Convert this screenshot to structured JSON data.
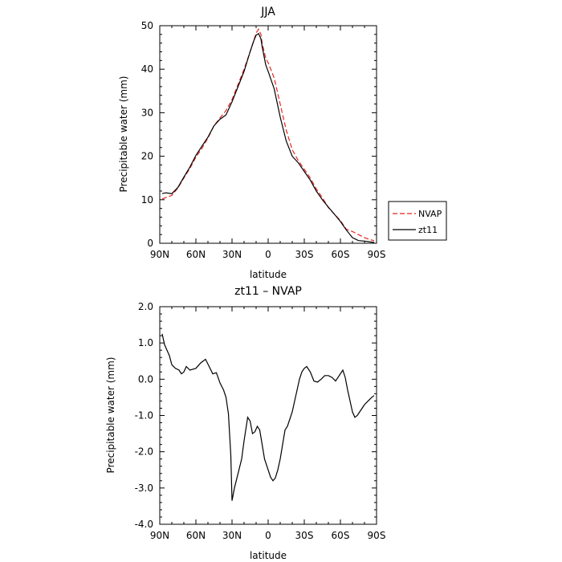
{
  "chart_data": [
    {
      "type": "line",
      "title": "JJA",
      "xlabel": "latitude",
      "ylabel": "Precipitable water (mm)",
      "xlim": [
        90,
        -90
      ],
      "ylim": [
        0,
        50
      ],
      "x_tick_values": [
        90,
        60,
        30,
        0,
        -30,
        -60,
        -90
      ],
      "x_tick_labels": [
        "90N",
        "60N",
        "30N",
        "0",
        "30S",
        "60S",
        "90S"
      ],
      "y_tick_values": [
        0,
        10,
        20,
        30,
        40,
        50
      ],
      "y_tick_labels": [
        "0",
        "10",
        "20",
        "30",
        "40",
        "50"
      ],
      "grid": false,
      "legend": "right",
      "series": [
        {
          "name": "NVAP",
          "color": "#e8231e",
          "dash": "dashed",
          "x": [
            88,
            85,
            80,
            75,
            70,
            65,
            60,
            55,
            50,
            45,
            40,
            35,
            30,
            25,
            20,
            15,
            12,
            10,
            8,
            6,
            5,
            2,
            0,
            -5,
            -10,
            -15,
            -20,
            -25,
            -30,
            -35,
            -40,
            -45,
            -50,
            -55,
            -60,
            -65,
            -70,
            -75,
            -80,
            -85,
            -88
          ],
          "y": [
            10.2,
            10.5,
            11.0,
            12.7,
            15.0,
            17.2,
            19.8,
            21.8,
            24.2,
            27.0,
            28.8,
            30.5,
            33.0,
            36.5,
            40.0,
            44.0,
            46.5,
            48.3,
            49.2,
            48.0,
            46.0,
            42.5,
            41.5,
            38.0,
            32.0,
            26.0,
            21.5,
            19.0,
            17.0,
            15.0,
            12.5,
            10.5,
            8.2,
            6.7,
            5.2,
            3.2,
            2.7,
            2.0,
            1.3,
            0.8,
            0.6
          ]
        },
        {
          "name": "zt11",
          "color": "#000000",
          "dash": "solid",
          "x": [
            88,
            85,
            80,
            75,
            70,
            65,
            60,
            55,
            50,
            45,
            40,
            35,
            30,
            25,
            20,
            15,
            12,
            10,
            8,
            6,
            5,
            2,
            0,
            -5,
            -10,
            -15,
            -20,
            -25,
            -30,
            -35,
            -40,
            -45,
            -50,
            -55,
            -60,
            -65,
            -70,
            -75,
            -80,
            -85,
            -88
          ],
          "y": [
            11.4,
            11.6,
            11.4,
            12.8,
            15.2,
            17.5,
            20.2,
            22.3,
            24.4,
            27.0,
            28.5,
            29.5,
            32.5,
            36.0,
            39.5,
            44.0,
            46.5,
            47.8,
            48.2,
            47.0,
            45.2,
            41.0,
            39.5,
            35.5,
            29.0,
            23.5,
            20.0,
            18.5,
            16.5,
            14.5,
            12.0,
            10.0,
            8.3,
            6.7,
            5.0,
            3.0,
            1.3,
            0.6,
            0.5,
            0.3,
            0.2
          ]
        }
      ]
    },
    {
      "type": "line",
      "title": "zt11 – NVAP",
      "xlabel": "latitude",
      "ylabel": "Precipitable water (mm)",
      "xlim": [
        90,
        -90
      ],
      "ylim": [
        -4.0,
        2.0
      ],
      "x_tick_values": [
        90,
        60,
        30,
        0,
        -30,
        -60,
        -90
      ],
      "x_tick_labels": [
        "90N",
        "60N",
        "30N",
        "0",
        "30S",
        "60S",
        "90S"
      ],
      "y_tick_values": [
        -4,
        -3,
        -2,
        -1,
        0,
        1,
        2
      ],
      "y_tick_labels": [
        "-4.0",
        "-3.0",
        "-2.0",
        "-1.0",
        "0.0",
        "1.0",
        "2.0"
      ],
      "grid": false,
      "series": [
        {
          "color": "#000000",
          "dash": "solid",
          "x": [
            88,
            86,
            84,
            82,
            80,
            77,
            74,
            72,
            70,
            68,
            65,
            60,
            56,
            52,
            49,
            46,
            43,
            40,
            37,
            35,
            33,
            31,
            30,
            28,
            25,
            22,
            20,
            17,
            15,
            13,
            11,
            9,
            7,
            5,
            3,
            0,
            -2,
            -4,
            -6,
            -8,
            -10,
            -12,
            -14,
            -16,
            -18,
            -20,
            -22,
            -24,
            -26,
            -28,
            -30,
            -32,
            -35,
            -38,
            -41,
            -44,
            -47,
            -50,
            -53,
            -56,
            -59,
            -62,
            -64,
            -66,
            -68,
            -70,
            -72,
            -74,
            -76,
            -78,
            -80,
            -83,
            -86,
            -88
          ],
          "y": [
            1.25,
            0.95,
            0.8,
            0.65,
            0.4,
            0.3,
            0.25,
            0.15,
            0.2,
            0.35,
            0.25,
            0.3,
            0.45,
            0.55,
            0.35,
            0.15,
            0.18,
            -0.1,
            -0.3,
            -0.5,
            -0.95,
            -2.1,
            -3.35,
            -3.0,
            -2.6,
            -2.2,
            -1.7,
            -1.05,
            -1.15,
            -1.5,
            -1.45,
            -1.3,
            -1.4,
            -1.8,
            -2.2,
            -2.5,
            -2.7,
            -2.8,
            -2.72,
            -2.5,
            -2.2,
            -1.8,
            -1.4,
            -1.3,
            -1.1,
            -0.9,
            -0.6,
            -0.3,
            0.0,
            0.2,
            0.3,
            0.35,
            0.2,
            -0.05,
            -0.08,
            0.0,
            0.1,
            0.1,
            0.05,
            -0.05,
            0.1,
            0.25,
            0.05,
            -0.3,
            -0.6,
            -0.9,
            -1.05,
            -1.0,
            -0.9,
            -0.8,
            -0.7,
            -0.6,
            -0.5,
            -0.45
          ]
        }
      ]
    }
  ]
}
